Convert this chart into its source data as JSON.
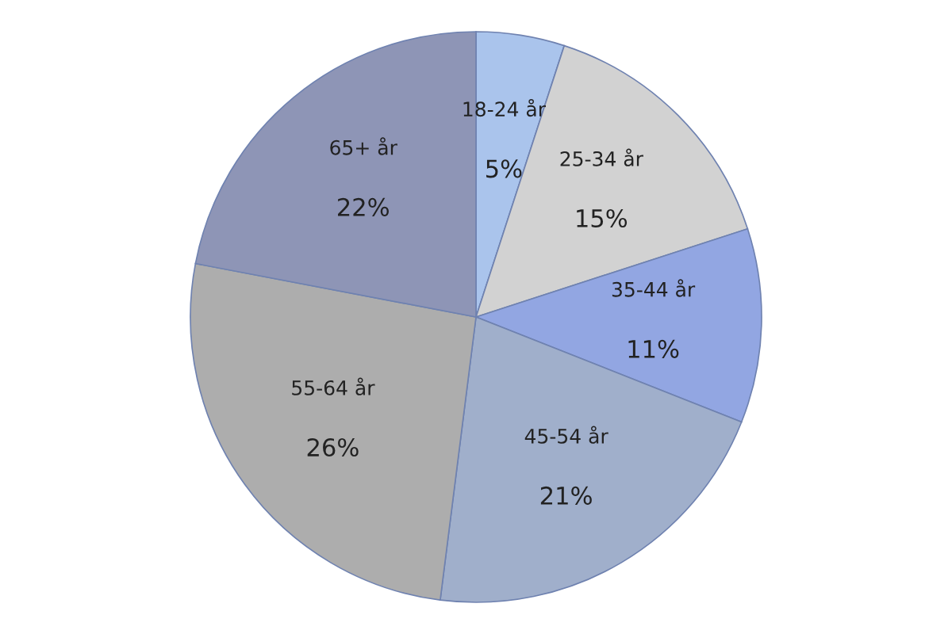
{
  "chart_data": {
    "type": "pie",
    "categories": [
      "18-24 år",
      "25-34 år",
      "35-44 år",
      "45-54 år",
      "55-64 år",
      "65+ år"
    ],
    "values": [
      5,
      15,
      11,
      21,
      26,
      22
    ],
    "value_labels": [
      "5%",
      "15%",
      "11%",
      "21%",
      "26%",
      "22%"
    ],
    "colors": [
      "#aac4ec",
      "#d2d2d2",
      "#92a6e2",
      "#a0afcb",
      "#adadad",
      "#8e95b6"
    ],
    "legend": false
  }
}
